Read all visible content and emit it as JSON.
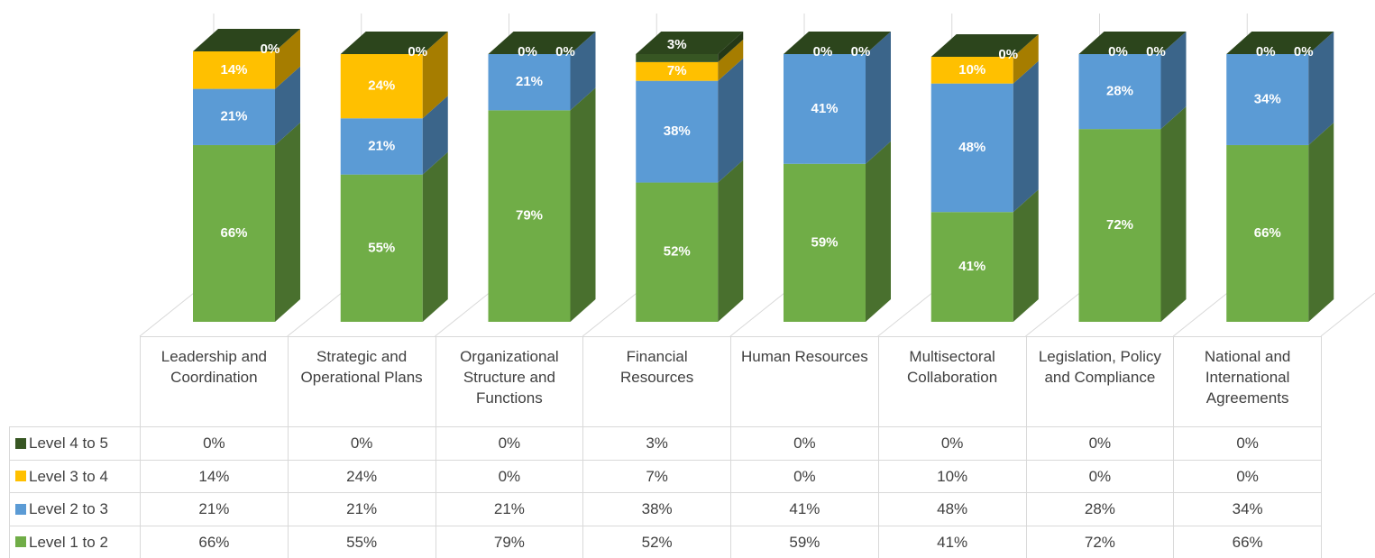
{
  "chart_data": {
    "type": "bar3d_stacked",
    "categories": [
      "Leadership and Coordination",
      "Strategic and Operational Plans",
      "Organizational Structure and Functions",
      "Financial Resources",
      "Human Resources",
      "Multisectoral Collaboration",
      "Legislation, Policy and Compliance",
      "National and International Agreements"
    ],
    "series": [
      {
        "name": "Level 1 to 2",
        "color": "#70ad47",
        "values": [
          66,
          55,
          79,
          52,
          59,
          41,
          72,
          66
        ],
        "value_labels": [
          "66%",
          "55%",
          "79%",
          "52%",
          "59%",
          "41%",
          "72%",
          "66%"
        ]
      },
      {
        "name": "Level 2 to 3",
        "color": "#5b9bd5",
        "values": [
          21,
          21,
          21,
          38,
          41,
          48,
          28,
          34
        ],
        "value_labels": [
          "21%",
          "21%",
          "21%",
          "38%",
          "41%",
          "48%",
          "28%",
          "34%"
        ]
      },
      {
        "name": "Level 3 to 4",
        "color": "#ffc000",
        "values": [
          14,
          24,
          0,
          7,
          0,
          10,
          0,
          0
        ],
        "value_labels": [
          "14%",
          "24%",
          "0%",
          "7%",
          "0%",
          "10%",
          "0%",
          "0%"
        ]
      },
      {
        "name": "Level 4 to 5",
        "color": "#375623",
        "values": [
          0,
          0,
          0,
          3,
          0,
          0,
          0,
          0
        ],
        "value_labels": [
          "0%",
          "0%",
          "0%",
          "3%",
          "0%",
          "0%",
          "0%",
          "0%"
        ]
      }
    ],
    "data_table": true
  }
}
